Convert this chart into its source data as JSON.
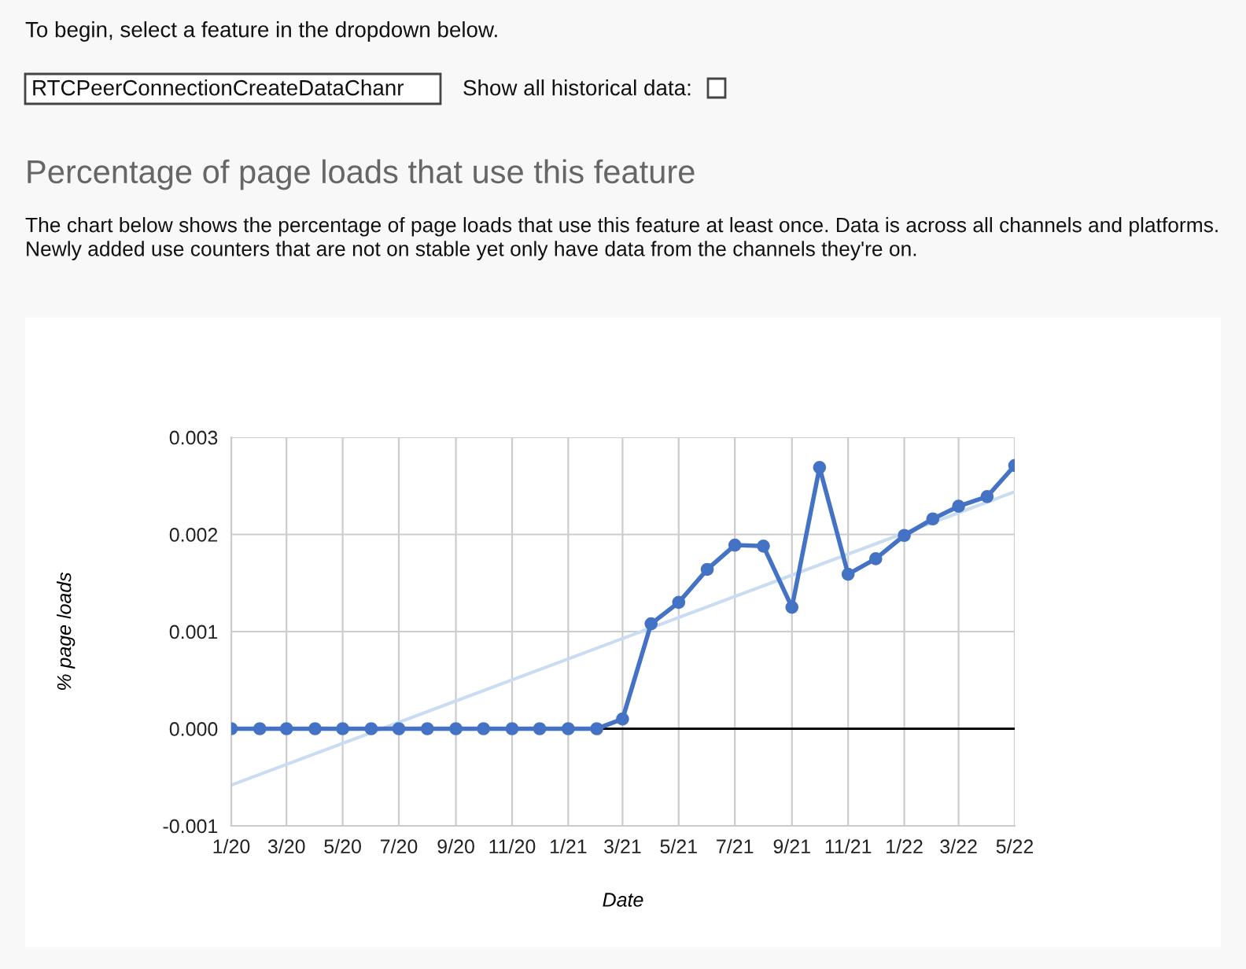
{
  "chart_data": {
    "type": "line",
    "title": "Percentage of page loads that use this feature",
    "annotations": [
      "To begin, select a feature in the dropdown below.",
      "RTCPeerConnectionCreateDataChanr",
      "Show all historical data:",
      "The chart below shows the percentage of page loads that use this feature at least once. Data is across all channels and platforms. Newly added use counters that are not on stable yet only have data from the channels they're on."
    ],
    "xlabel": "Date",
    "ylabel": "% page loads",
    "series": [
      {
        "color": "#4472c4",
        "marker": "circle",
        "x": [
          "2020-01",
          "2020-02",
          "2020-03",
          "2020-04",
          "2020-05",
          "2020-06",
          "2020-07",
          "2020-08",
          "2020-09",
          "2020-10",
          "2020-11",
          "2020-12",
          "2021-01",
          "2021-02",
          "2021-03",
          "2021-04",
          "2021-05",
          "2021-06",
          "2021-07",
          "2021-08",
          "2021-09",
          "2021-10",
          "2021-11",
          "2021-12",
          "2022-01",
          "2022-02",
          "2022-03",
          "2022-04",
          "2022-05"
        ],
        "values": [
          0,
          0,
          0,
          0,
          0,
          0,
          0,
          0,
          0,
          0,
          0,
          0,
          0,
          0,
          0.0001,
          0.00108,
          0.0013,
          0.00164,
          0.00189,
          0.00188,
          0.00125,
          0.00269,
          0.00159,
          0.00175,
          0.00199,
          0.00216,
          0.00229,
          0.00239,
          0.00271
        ]
      },
      {
        "color": "#c9dcf2",
        "marker": "none",
        "x": [
          "2020-01",
          "2022-05"
        ],
        "values": [
          -0.00058,
          0.00244
        ]
      }
    ],
    "xlim": [
      "2020-01",
      "2022-05"
    ],
    "xticks": [
      {
        "value": "2020-01",
        "label": "1/20"
      },
      {
        "value": "2020-03",
        "label": "3/20"
      },
      {
        "value": "2020-05",
        "label": "5/20"
      },
      {
        "value": "2020-07",
        "label": "7/20"
      },
      {
        "value": "2020-09",
        "label": "9/20"
      },
      {
        "value": "2020-11",
        "label": "11/20"
      },
      {
        "value": "2021-01",
        "label": "1/21"
      },
      {
        "value": "2021-03",
        "label": "3/21"
      },
      {
        "value": "2021-05",
        "label": "5/21"
      },
      {
        "value": "2021-07",
        "label": "7/21"
      },
      {
        "value": "2021-09",
        "label": "9/21"
      },
      {
        "value": "2021-11",
        "label": "11/21"
      },
      {
        "value": "2022-01",
        "label": "1/22"
      },
      {
        "value": "2022-03",
        "label": "3/22"
      },
      {
        "value": "2022-05",
        "label": "5/22"
      }
    ],
    "ylim": [
      -0.001,
      0.003
    ],
    "yticks": [
      -0.001,
      {
        "value": 0,
        "label": "0.000"
      },
      0.001,
      0.002,
      0.003
    ],
    "ref_lines": [
      {
        "axis": "y",
        "value": 0,
        "color": "#000000"
      }
    ],
    "grid": true
  }
}
